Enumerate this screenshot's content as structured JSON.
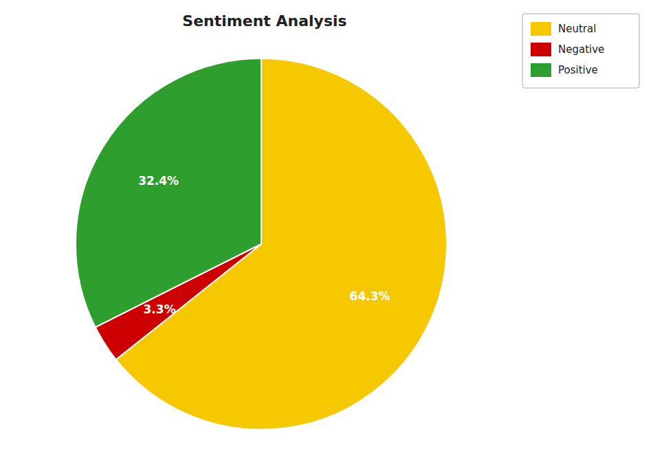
{
  "chart_data": {
    "type": "pie",
    "title": "Sentiment Analysis",
    "categories": [
      "Neutral",
      "Negative",
      "Positive"
    ],
    "values": [
      64.3,
      3.3,
      32.4
    ],
    "value_labels": [
      "64.3%",
      "3.3%",
      "32.4%"
    ],
    "colors": [
      "#f5c800",
      "#cc0000",
      "#2e9e2e"
    ],
    "data_labels": true,
    "legend": "upper right"
  }
}
